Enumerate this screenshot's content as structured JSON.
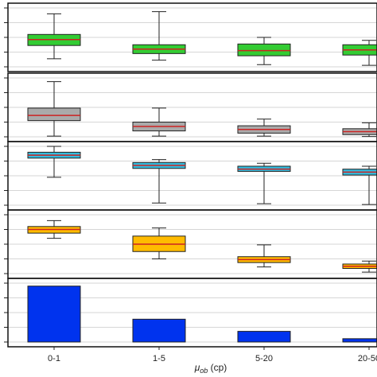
{
  "chart_data": {
    "type": "box",
    "categories": [
      "0-1",
      "1-5",
      "5-20",
      "20-50"
    ],
    "xlabel_main": "μ",
    "xlabel_sub": "ob",
    "xlabel_unit": " (cp)",
    "panels": [
      {
        "kind": "box",
        "ylim": [
          0,
          4
        ],
        "grid": true,
        "fill": "#33cc33",
        "median_color": "#cc2222",
        "boxes": [
          {
            "whisker_low": 0.55,
            "q1": 1.45,
            "median": 1.85,
            "q3": 2.2,
            "whisker_high": 3.6
          },
          {
            "whisker_low": 0.45,
            "q1": 0.9,
            "median": 1.2,
            "q3": 1.5,
            "whisker_high": 3.75
          },
          {
            "whisker_low": 0.15,
            "q1": 0.75,
            "median": 1.1,
            "q3": 1.55,
            "whisker_high": 2.0
          },
          {
            "whisker_low": 0.1,
            "q1": 0.8,
            "median": 1.15,
            "q3": 1.5,
            "whisker_high": 1.8
          }
        ]
      },
      {
        "kind": "box",
        "ylim": [
          0,
          4
        ],
        "grid": true,
        "fill": "#aaaaaa",
        "median_color": "#cc2222",
        "boxes": [
          {
            "whisker_low": 0.05,
            "q1": 1.1,
            "median": 1.45,
            "q3": 1.95,
            "whisker_high": 3.75
          },
          {
            "whisker_low": 0.05,
            "q1": 0.4,
            "median": 0.7,
            "q3": 1.0,
            "whisker_high": 1.95
          },
          {
            "whisker_low": 0.05,
            "q1": 0.25,
            "median": 0.5,
            "q3": 0.75,
            "whisker_high": 1.2
          },
          {
            "whisker_low": 0.02,
            "q1": 0.15,
            "median": 0.35,
            "q3": 0.55,
            "whisker_high": 0.95
          }
        ]
      },
      {
        "kind": "box",
        "ylim": [
          0,
          4
        ],
        "grid": true,
        "fill": "#33bbdd",
        "median_color": "#cc2222",
        "boxes": [
          {
            "whisker_low": 1.9,
            "q1": 3.2,
            "median": 3.4,
            "q3": 3.6,
            "whisker_high": 4.0
          },
          {
            "whisker_low": 0.15,
            "q1": 2.5,
            "median": 2.7,
            "q3": 2.9,
            "whisker_high": 3.1
          },
          {
            "whisker_low": 0.1,
            "q1": 2.3,
            "median": 2.45,
            "q3": 2.65,
            "whisker_high": 2.85
          },
          {
            "whisker_low": 0.05,
            "q1": 2.05,
            "median": 2.25,
            "q3": 2.45,
            "whisker_high": 2.65
          }
        ]
      },
      {
        "kind": "box",
        "ylim": [
          0,
          4
        ],
        "grid": true,
        "fill": "#ffbb00",
        "median_color": "#cc2222",
        "boxes": [
          {
            "whisker_low": 2.4,
            "q1": 2.75,
            "median": 3.0,
            "q3": 3.2,
            "whisker_high": 3.6
          },
          {
            "whisker_low": 1.0,
            "q1": 1.5,
            "median": 2.0,
            "q3": 2.55,
            "whisker_high": 3.1
          },
          {
            "whisker_low": 0.45,
            "q1": 0.75,
            "median": 0.95,
            "q3": 1.15,
            "whisker_high": 1.95
          },
          {
            "whisker_low": 0.1,
            "q1": 0.35,
            "median": 0.5,
            "q3": 0.65,
            "whisker_high": 0.85
          }
        ]
      },
      {
        "kind": "bar",
        "ylim": [
          0,
          8
        ],
        "grid": true,
        "fill": "#0033ee",
        "values": [
          7.6,
          3.1,
          1.45,
          0.45
        ]
      }
    ]
  }
}
